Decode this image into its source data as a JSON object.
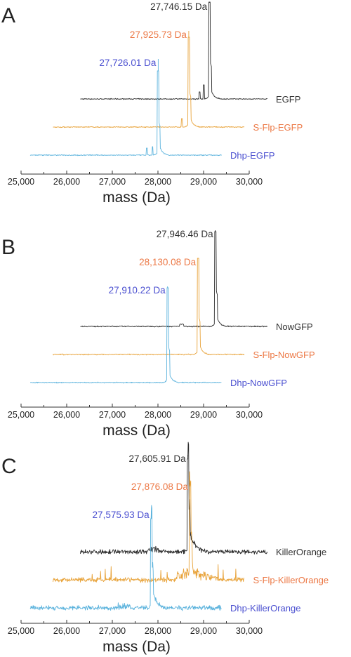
{
  "colors": {
    "black": "#2b2b2b",
    "orange": "#e8a33a",
    "blue": "#5cb3dd",
    "label_black": "#333333",
    "label_orange": "#ec7845",
    "label_blue": "#4a4fd0"
  },
  "chart_data": [
    {
      "type": "line",
      "panel": "A",
      "xlabel": "mass (Da)",
      "xlim": [
        25000,
        30000
      ],
      "x_ticks": [
        "25,000",
        "26,000",
        "27,000",
        "28,000",
        "29,000",
        "30,000"
      ],
      "series": [
        {
          "name": "EGFP",
          "color": "black",
          "peak_label": "27,746.15 Da",
          "peak_mass": 27746.15,
          "x_range": [
            26300,
            30400
          ]
        },
        {
          "name": "S-Flp-EGFP",
          "color": "orange",
          "peak_label": "27,925.73 Da",
          "peak_mass": 27925.73,
          "x_range": [
            25700,
            29900
          ]
        },
        {
          "name": "Dhp-EGFP",
          "color": "blue",
          "peak_label": "27,726.01 Da",
          "peak_mass": 27726.01,
          "x_range": [
            25200,
            29400
          ]
        }
      ]
    },
    {
      "type": "line",
      "panel": "B",
      "xlabel": "mass (Da)",
      "xlim": [
        25000,
        30000
      ],
      "x_ticks": [
        "25,000",
        "26,000",
        "27,000",
        "28,000",
        "29,000",
        "30,000"
      ],
      "series": [
        {
          "name": "NowGFP",
          "color": "black",
          "peak_label": "27,946.46 Da",
          "peak_mass": 27946.46,
          "x_range": [
            26300,
            30400
          ]
        },
        {
          "name": "S-Flp-NowGFP",
          "color": "orange",
          "peak_label": "28,130.08 Da",
          "peak_mass": 28130.08,
          "x_range": [
            25700,
            29900
          ]
        },
        {
          "name": "Dhp-NowGFP",
          "color": "blue",
          "peak_label": "27,910.22 Da",
          "peak_mass": 27910.22,
          "x_range": [
            25200,
            29400
          ]
        }
      ]
    },
    {
      "type": "line",
      "panel": "C",
      "xlabel": "mass (Da)",
      "xlim": [
        25000,
        30000
      ],
      "x_ticks": [
        "25,000",
        "26,000",
        "27,000",
        "28,000",
        "29,000",
        "30,000"
      ],
      "series": [
        {
          "name": "KillerOrange",
          "color": "black",
          "peak_label": "27,605.91 Da",
          "peak_mass": 27605.91,
          "x_range": [
            26300,
            30400
          ]
        },
        {
          "name": "S-Flp-KillerOrange",
          "color": "orange",
          "peak_label": "27,876.08 Da",
          "peak_mass": 27876.08,
          "x_range": [
            25700,
            29900
          ]
        },
        {
          "name": "Dhp-KillerOrange",
          "color": "blue",
          "peak_label": "27,575.93 Da",
          "peak_mass": 27575.93,
          "x_range": [
            25200,
            29400
          ]
        }
      ]
    }
  ]
}
